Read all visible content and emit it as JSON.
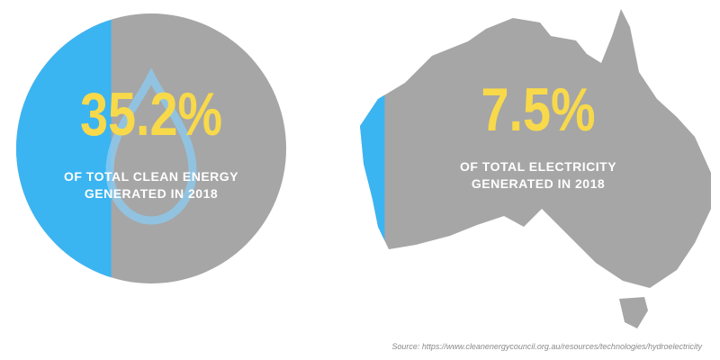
{
  "panels": [
    {
      "value": 35.2,
      "value_label": "35.2%",
      "caption": [
        "OF TOTAL CLEAN ENERGY",
        "GENERATED IN 2018"
      ]
    },
    {
      "value": 7.5,
      "value_label": "7.5%",
      "caption": [
        "OF TOTAL ELECTRICITY",
        "GENERATED IN 2018"
      ]
    }
  ],
  "source": "Source: https://www.cleanenergycouncil.org.au/resources/technologies/hydroelectricity"
}
